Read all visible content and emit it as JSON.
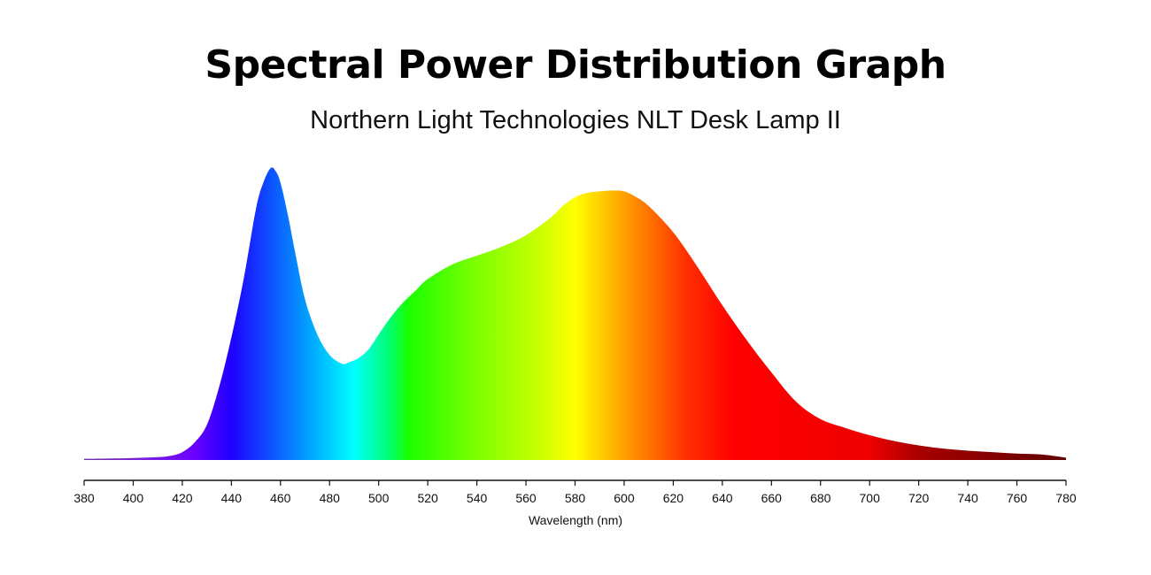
{
  "chart_data": {
    "type": "area",
    "title": "Spectral Power Distribution Graph",
    "subtitle": "Northern Light Technologies NLT Desk Lamp II",
    "xlabel": "Wavelength (nm)",
    "ylabel": "",
    "xlim": [
      380,
      780
    ],
    "ylim": [
      0,
      1
    ],
    "grid": false,
    "xticks": [
      380,
      400,
      420,
      440,
      460,
      480,
      500,
      520,
      540,
      560,
      580,
      600,
      620,
      640,
      660,
      680,
      700,
      720,
      740,
      760,
      780
    ],
    "series": [
      {
        "x": [
          380,
          390,
          400,
          410,
          415,
          420,
          425,
          430,
          435,
          440,
          445,
          450,
          453,
          456,
          458,
          460,
          463,
          466,
          470,
          475,
          480,
          485,
          488,
          492,
          496,
          500,
          505,
          510,
          515,
          520,
          530,
          540,
          550,
          560,
          570,
          575,
          580,
          585,
          590,
          595,
          600,
          605,
          610,
          620,
          630,
          640,
          650,
          660,
          670,
          680,
          690,
          700,
          710,
          720,
          730,
          740,
          750,
          760,
          770,
          780
        ],
        "y": [
          0.004,
          0.005,
          0.007,
          0.01,
          0.014,
          0.027,
          0.06,
          0.12,
          0.25,
          0.42,
          0.62,
          0.86,
          0.95,
          1.0,
          0.99,
          0.95,
          0.84,
          0.71,
          0.55,
          0.43,
          0.36,
          0.33,
          0.335,
          0.35,
          0.38,
          0.43,
          0.49,
          0.54,
          0.58,
          0.62,
          0.67,
          0.7,
          0.73,
          0.77,
          0.83,
          0.87,
          0.9,
          0.915,
          0.92,
          0.923,
          0.92,
          0.9,
          0.87,
          0.78,
          0.66,
          0.53,
          0.41,
          0.3,
          0.2,
          0.14,
          0.11,
          0.085,
          0.065,
          0.05,
          0.039,
          0.032,
          0.027,
          0.022,
          0.019,
          0.008
        ]
      }
    ],
    "gradient_stops": [
      {
        "wl": 380,
        "color": "#6b2fa8"
      },
      {
        "wl": 405,
        "color": "#7a1fe0"
      },
      {
        "wl": 425,
        "color": "#6a00ff"
      },
      {
        "wl": 440,
        "color": "#1d00ff"
      },
      {
        "wl": 460,
        "color": "#0a66ff"
      },
      {
        "wl": 475,
        "color": "#00b4ff"
      },
      {
        "wl": 490,
        "color": "#00ffff"
      },
      {
        "wl": 505,
        "color": "#00ff6a"
      },
      {
        "wl": 512,
        "color": "#1aff00"
      },
      {
        "wl": 540,
        "color": "#7dff00"
      },
      {
        "wl": 565,
        "color": "#c8ff00"
      },
      {
        "wl": 580,
        "color": "#ffff00"
      },
      {
        "wl": 600,
        "color": "#ffa000"
      },
      {
        "wl": 625,
        "color": "#ff3000"
      },
      {
        "wl": 645,
        "color": "#ff0000"
      },
      {
        "wl": 700,
        "color": "#ee0000"
      },
      {
        "wl": 720,
        "color": "#a80000"
      },
      {
        "wl": 780,
        "color": "#600000"
      }
    ]
  }
}
